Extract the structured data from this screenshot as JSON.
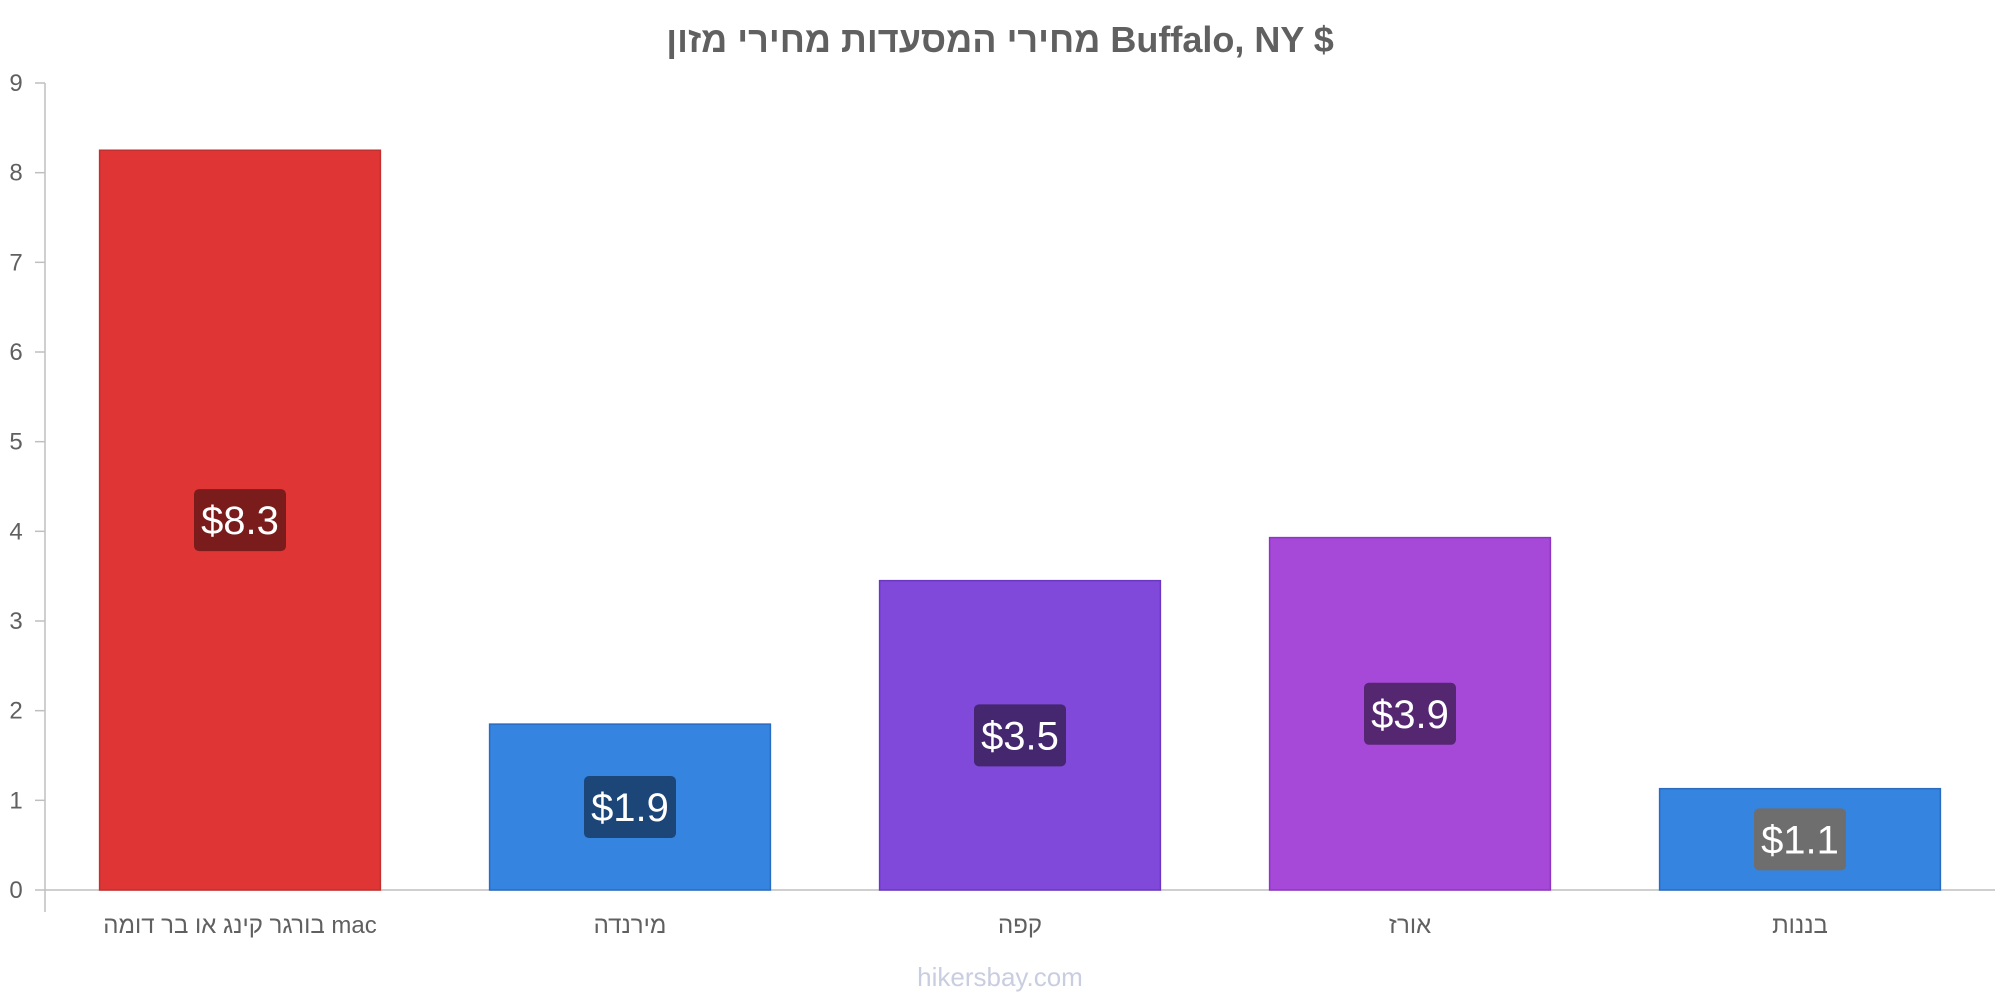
{
  "chart_data": {
    "type": "bar",
    "title": "מחירי המסעדות מחירי מזון Buffalo, NY $",
    "xlabel": "",
    "ylabel": "",
    "ylim": [
      0,
      9
    ],
    "yticks": [
      "0",
      "1",
      "2",
      "3",
      "4",
      "5",
      "6",
      "7",
      "8",
      "9"
    ],
    "grid": false,
    "legend": "none",
    "categories": [
      "בורגר קינג או בר דומה mac",
      "מירנדה",
      "קפה",
      "אורז",
      "בננות"
    ],
    "values": [
      8.25,
      1.85,
      3.45,
      3.93,
      1.13
    ],
    "data_labels": [
      "$8.3",
      "$1.9",
      "$3.5",
      "$3.9",
      "$1.1"
    ],
    "bar_colors": [
      "#e03535",
      "#3584e0",
      "#8149d9",
      "#a649d9",
      "#3584e0"
    ],
    "bar_border_colors": [
      "#c42f2f",
      "#2a6cc0",
      "#6c37c0",
      "#8d37c0",
      "#2a6cc0"
    ],
    "label_bg_colors": [
      "#7a1c1c",
      "#1c4578",
      "#44276f",
      "#562771",
      "#6e6e6e"
    ]
  },
  "footer": "hikersbay.com"
}
